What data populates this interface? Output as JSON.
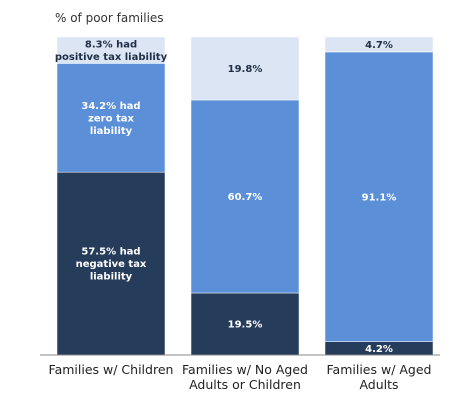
{
  "chart_data": {
    "type": "bar",
    "stacked": true,
    "percent_stacked": true,
    "ylabel": "% of poor families",
    "categories": [
      [
        "Families w/ Children"
      ],
      [
        "Families w/ No Aged",
        "Adults or Children"
      ],
      [
        "Families w/ Aged",
        "Adults"
      ]
    ],
    "series": [
      {
        "key": "negative",
        "color": "#253d5b",
        "label_color": "#ffffff",
        "values": [
          57.5,
          19.5,
          4.2
        ],
        "labels": [
          [
            "57.5% had",
            "negative tax",
            "liability"
          ],
          [
            "19.5%"
          ],
          [
            "4.2%"
          ]
        ]
      },
      {
        "key": "zero",
        "color": "#5b8fd8",
        "label_color": "#ffffff",
        "values": [
          34.2,
          60.7,
          91.1
        ],
        "labels": [
          [
            "34.2% had",
            "zero tax",
            "liability"
          ],
          [
            "60.7%"
          ],
          [
            "91.1%"
          ]
        ]
      },
      {
        "key": "positive",
        "color": "#dbe5f4",
        "label_color": "#1f2f45",
        "values": [
          8.3,
          19.8,
          4.7
        ],
        "labels": [
          [
            "8.3% had",
            "positive tax liability"
          ],
          [
            "19.8%"
          ],
          [
            "4.7%"
          ]
        ]
      }
    ],
    "ylim": [
      0,
      100
    ],
    "grid": false,
    "legend": "none"
  }
}
